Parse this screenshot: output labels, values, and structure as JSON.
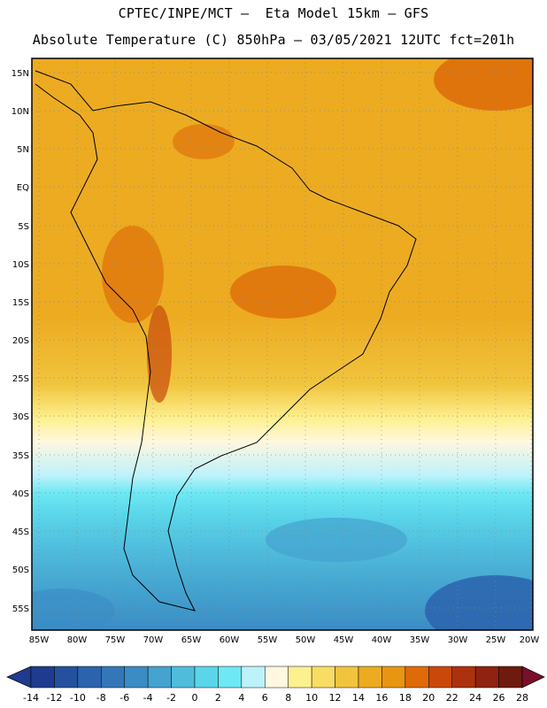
{
  "header": {
    "line1": "CPTEC/INPE/MCT –  Eta Model 15km – GFS",
    "line2": "Absolute Temperature (C) 850hPa – 03/05/2021 12UTC fct=201h"
  },
  "map": {
    "lat_labels": [
      "15N",
      "10N",
      "5N",
      "EQ",
      "5S",
      "10S",
      "15S",
      "20S",
      "25S",
      "30S",
      "35S",
      "40S",
      "45S",
      "50S",
      "55S"
    ],
    "lon_labels": [
      "85W",
      "80W",
      "75W",
      "70W",
      "65W",
      "60W",
      "55W",
      "50W",
      "45W",
      "40W",
      "35W",
      "30W",
      "25W",
      "20W"
    ]
  },
  "colorbar": {
    "labels": [
      "-14",
      "-12",
      "-10",
      "-8",
      "-6",
      "-4",
      "-2",
      "0",
      "2",
      "4",
      "6",
      "8",
      "10",
      "12",
      "14",
      "16",
      "18",
      "20",
      "22",
      "24",
      "26",
      "28"
    ],
    "colors": [
      "#1f3b8f",
      "#24509e",
      "#2b63ad",
      "#3377b8",
      "#3b8cc4",
      "#44a3cf",
      "#4fbcdc",
      "#5ad5e9",
      "#6de8f4",
      "#bdf2fb",
      "#fff7df",
      "#fdf08f",
      "#f7dd63",
      "#f1c43d",
      "#ecab21",
      "#e89512",
      "#de6a08",
      "#c9480a",
      "#ad310d",
      "#8f2210",
      "#6f1a0e"
    ]
  }
}
